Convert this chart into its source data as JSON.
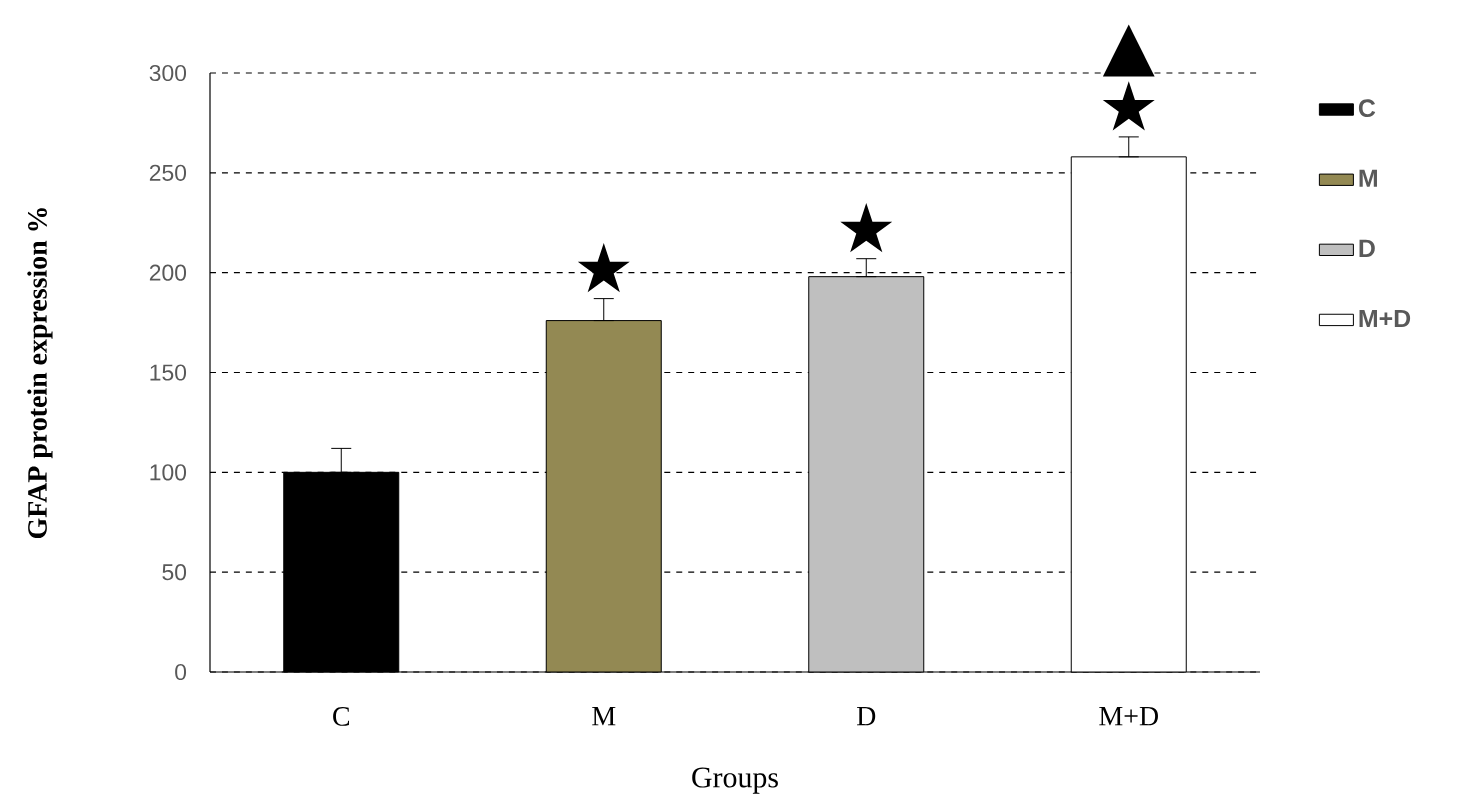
{
  "chart_data": {
    "type": "bar",
    "xlabel": "Groups",
    "ylabel": "GFAP protein expression %",
    "categories": [
      "C",
      "M",
      "D",
      "M+D"
    ],
    "series": [
      {
        "name": "C",
        "color": "#000000",
        "values": [
          100,
          null,
          null,
          null
        ],
        "errors": [
          [
            100,
            112
          ],
          null,
          null,
          null
        ]
      },
      {
        "name": "M",
        "color": "#938953",
        "values": [
          null,
          176,
          null,
          null
        ],
        "errors": [
          null,
          [
            176,
            187
          ],
          null,
          null
        ]
      },
      {
        "name": "D",
        "color": "#bfbfbf",
        "values": [
          null,
          null,
          198,
          null
        ],
        "errors": [
          null,
          null,
          [
            198,
            207
          ],
          null
        ]
      },
      {
        "name": "M+D",
        "color": "#ffffff",
        "values": [
          null,
          null,
          null,
          258
        ],
        "errors": [
          null,
          null,
          null,
          [
            258,
            268
          ]
        ]
      }
    ],
    "ylim": [
      0,
      300
    ],
    "yticks": [
      0,
      50,
      100,
      150,
      200,
      250,
      300
    ],
    "grid": "y",
    "legend": "right",
    "annotations": [
      {
        "text": "★",
        "x": "M",
        "y": 176
      },
      {
        "text": "★",
        "x": "D",
        "y": 198
      },
      {
        "text": "★",
        "x": "M+D",
        "y": 258
      },
      {
        "text": "▲",
        "x": "M+D",
        "y": 258
      }
    ]
  }
}
